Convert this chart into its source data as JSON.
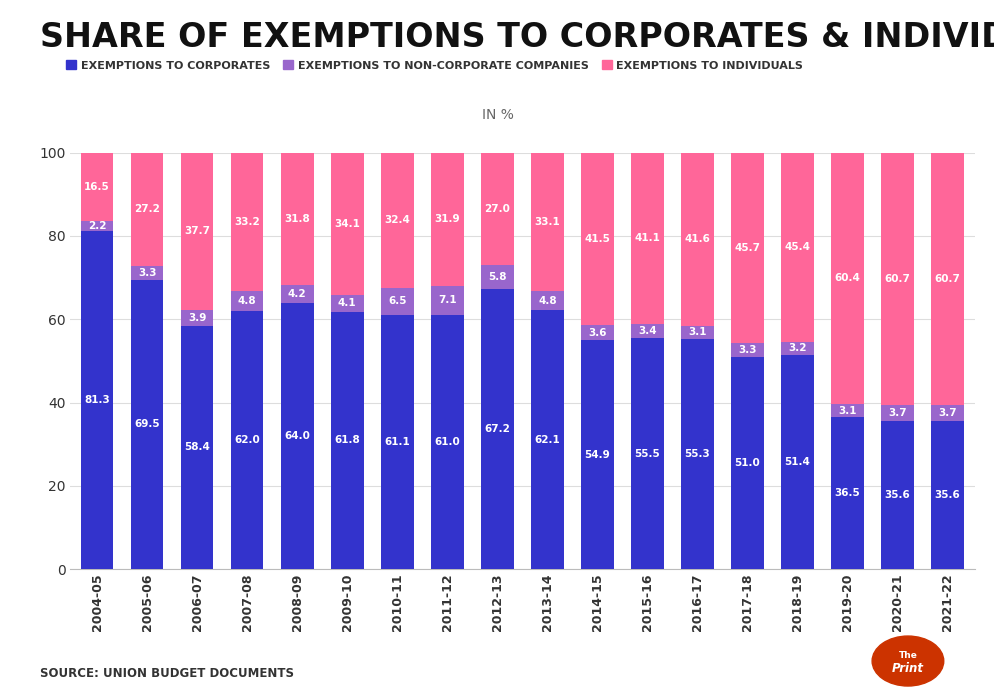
{
  "title": "SHARE OF EXEMPTIONS TO CORPORATES & INDIVIDUALS",
  "subtitle": "IN %",
  "source": "SOURCE: UNION BUDGET DOCUMENTS",
  "categories": [
    "2004-05",
    "2005-06",
    "2006-07",
    "2007-08",
    "2008-09",
    "2009-10",
    "2010-11",
    "2011-12",
    "2012-13",
    "2013-14",
    "2014-15",
    "2015-16",
    "2016-17",
    "2017-18",
    "2018-19",
    "2019-20",
    "2020-21",
    "2021-22"
  ],
  "corporates": [
    81.3,
    69.5,
    58.4,
    62.0,
    64.0,
    61.8,
    61.1,
    61.0,
    67.2,
    62.1,
    54.9,
    55.5,
    55.3,
    51.0,
    51.4,
    36.5,
    35.6,
    35.6
  ],
  "non_corporate": [
    2.2,
    3.3,
    3.9,
    4.8,
    4.2,
    4.1,
    6.5,
    7.1,
    5.8,
    4.8,
    3.6,
    3.4,
    3.1,
    3.3,
    3.2,
    3.1,
    3.7,
    3.7
  ],
  "individuals": [
    16.5,
    27.2,
    37.7,
    33.2,
    31.8,
    34.1,
    32.4,
    31.9,
    27.0,
    33.1,
    41.5,
    41.1,
    41.6,
    45.7,
    45.4,
    60.4,
    60.7,
    60.7
  ],
  "color_corporates": "#3333cc",
  "color_non_corporate": "#9966cc",
  "color_individuals": "#ff6699",
  "legend_labels": [
    "EXEMPTIONS TO CORPORATES",
    "EXEMPTIONS TO NON-CORPORATE COMPANIES",
    "EXEMPTIONS TO INDIVIDUALS"
  ],
  "background_color": "#ffffff",
  "title_fontsize": 24,
  "subtitle_fontsize": 10,
  "label_fontsize": 7.5,
  "tick_fontsize": 9,
  "ylim": [
    0,
    100
  ],
  "bar_width": 0.65
}
